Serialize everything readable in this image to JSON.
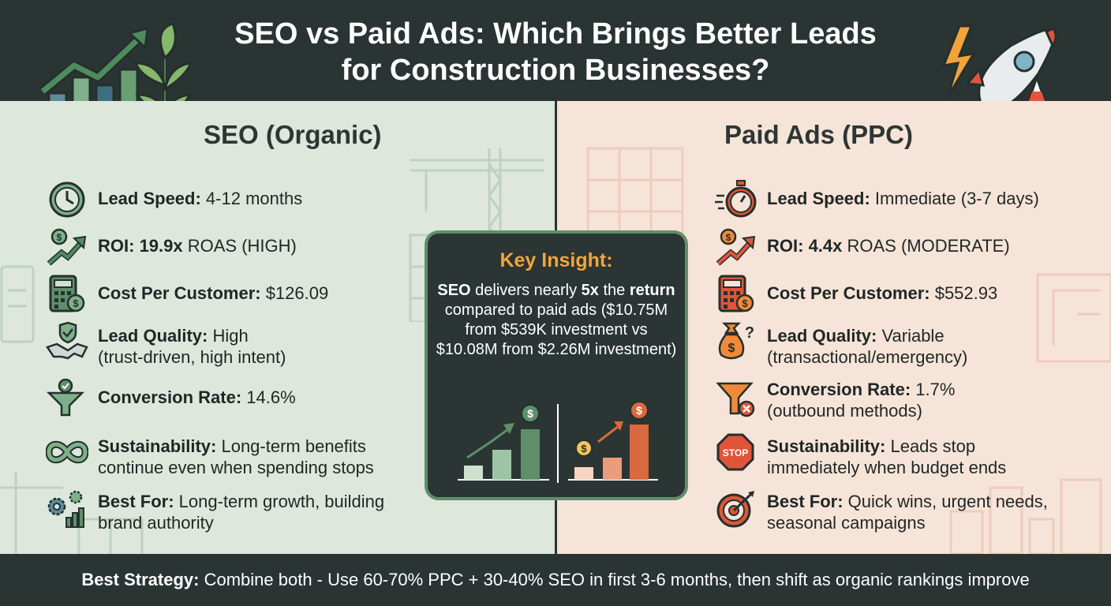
{
  "header": {
    "title_line1": "SEO vs Paid Ads: Which Brings Better Leads",
    "title_line2": "for Construction Businesses?"
  },
  "seo": {
    "title": "SEO (Organic)",
    "items": [
      {
        "icon": "clock-icon",
        "label": "Lead Speed:",
        "value": " 4-12 months"
      },
      {
        "icon": "growth-arrow-icon",
        "label": "ROI:",
        "value_bold": " 19.9x",
        "value": " ROAS (HIGH)"
      },
      {
        "icon": "calculator-icon",
        "label": "Cost Per Customer:",
        "value": " $126.09"
      },
      {
        "icon": "handshake-icon",
        "label": "Lead Quality:",
        "value": " High",
        "value2": "(trust-driven, high intent)"
      },
      {
        "icon": "funnel-check-icon",
        "label": "Conversion Rate:",
        "value": " 14.6%"
      },
      {
        "icon": "infinity-icon",
        "label": "Sustainability:",
        "value": " Long-term benefits",
        "value2": "continue even when spending stops"
      },
      {
        "icon": "gears-chart-icon",
        "label": "Best For:",
        "value": " Long-term growth, building",
        "value2": "brand authority"
      }
    ]
  },
  "ppc": {
    "title": "Paid Ads (PPC)",
    "items": [
      {
        "icon": "stopwatch-icon",
        "label": "Lead Speed:",
        "value": " Immediate (3-7 days)"
      },
      {
        "icon": "growth-arrow-icon",
        "label": "ROI:",
        "value_bold": " 4.4x",
        "value": " ROAS (MODERATE)"
      },
      {
        "icon": "calculator-icon",
        "label": "Cost Per Customer:",
        "value": " $552.93"
      },
      {
        "icon": "money-bag-question-icon",
        "label": "Lead Quality:",
        "value": " Variable",
        "value2": "(transactional/emergency)"
      },
      {
        "icon": "funnel-x-icon",
        "label": "Conversion Rate:",
        "value": " 1.7%",
        "value2": "(outbound methods)"
      },
      {
        "icon": "stop-sign-icon",
        "label": "Sustainability:",
        "value": " Leads stop",
        "value2": "immediately when budget ends"
      },
      {
        "icon": "target-icon",
        "label": "Best For:",
        "value": " Quick wins, urgent needs,",
        "value2": "seasonal campaigns"
      }
    ],
    "stop_text": "STOP"
  },
  "insight": {
    "title": "Key Insight:",
    "seo_word": "SEO",
    "text1": " delivers nearly ",
    "mult": "5x",
    "text2": " the",
    "return_word": "return",
    "text3": " compared to paid ads ($10.75M from $539K investment vs $10.08M from $2.26M investment)"
  },
  "footer": {
    "label": "Best Strategy:",
    "text": " Combine both - Use 60-70% PPC + 30-40% SEO in first 3-6 months, then shift as organic rankings improve"
  },
  "colors": {
    "seo_green": "#5e8f6a",
    "ppc_orange": "#d9693e",
    "dark": "#2a3432",
    "insight_title": "#f2a53a"
  }
}
